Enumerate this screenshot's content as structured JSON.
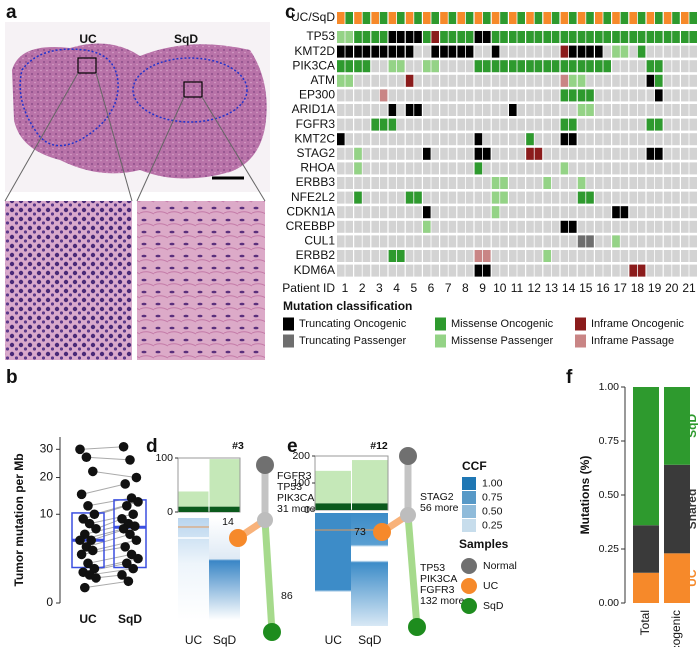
{
  "panel_a": {
    "letter": "a",
    "labels": [
      "UC",
      "SqD"
    ]
  },
  "chart_data": [
    {
      "type": "oncoprint",
      "panel": "c",
      "sample_row": "UC/SqD",
      "sample_colors": [
        "#f6892a",
        "#2e9a2e"
      ],
      "empty_color": "#d3d3d3",
      "genes": [
        "TP53",
        "KMT2D",
        "PIK3CA",
        "ATM",
        "EP300",
        "ARID1A",
        "FGFR3",
        "KMT2C",
        "STAG2",
        "RHOA",
        "ERBB3",
        "NFE2L2",
        "CDKN1A",
        "CREBBP",
        "CUL1",
        "ERBB2",
        "KDM6A"
      ],
      "matrix": [
        [
          3,
          3,
          2,
          2,
          2,
          2,
          0,
          0,
          0,
          0,
          2,
          4,
          2,
          2,
          2,
          2,
          0,
          0,
          2,
          2,
          2,
          2,
          2,
          2,
          2,
          2,
          2,
          2,
          2,
          2,
          2,
          2,
          2,
          2,
          2,
          2,
          2,
          2,
          2,
          2,
          2,
          2
        ],
        [
          0,
          0,
          0,
          0,
          0,
          0,
          0,
          0,
          0,
          null,
          null,
          0,
          0,
          0,
          0,
          0,
          null,
          null,
          0,
          null,
          null,
          null,
          null,
          null,
          null,
          null,
          4,
          0,
          0,
          0,
          0,
          null,
          3,
          3,
          null,
          2,
          null,
          null,
          null,
          null,
          null,
          null
        ],
        [
          2,
          2,
          2,
          2,
          null,
          null,
          3,
          3,
          null,
          null,
          3,
          3,
          null,
          null,
          null,
          null,
          2,
          2,
          2,
          2,
          2,
          2,
          2,
          2,
          2,
          2,
          2,
          2,
          2,
          2,
          2,
          2,
          null,
          null,
          null,
          null,
          2,
          2,
          null,
          null,
          null,
          null
        ],
        [
          3,
          3,
          null,
          null,
          null,
          null,
          null,
          null,
          4,
          null,
          null,
          null,
          null,
          null,
          null,
          null,
          null,
          null,
          null,
          null,
          null,
          null,
          null,
          null,
          null,
          null,
          5,
          3,
          3,
          null,
          null,
          null,
          null,
          null,
          null,
          null,
          0,
          2,
          null,
          null,
          null,
          null
        ],
        [
          null,
          null,
          null,
          null,
          null,
          5,
          null,
          null,
          null,
          null,
          null,
          null,
          null,
          null,
          null,
          null,
          null,
          null,
          null,
          null,
          null,
          null,
          null,
          null,
          null,
          null,
          2,
          2,
          2,
          2,
          null,
          null,
          null,
          null,
          null,
          null,
          null,
          0,
          null,
          null,
          null,
          null
        ],
        [
          null,
          null,
          null,
          null,
          null,
          null,
          0,
          null,
          0,
          0,
          null,
          null,
          null,
          null,
          null,
          null,
          null,
          null,
          null,
          null,
          0,
          null,
          null,
          null,
          null,
          null,
          null,
          null,
          3,
          3,
          null,
          null,
          null,
          null,
          null,
          null,
          null,
          null,
          null,
          null,
          null,
          null
        ],
        [
          null,
          null,
          null,
          null,
          2,
          2,
          2,
          null,
          null,
          null,
          null,
          null,
          null,
          null,
          null,
          null,
          null,
          null,
          null,
          null,
          null,
          null,
          null,
          null,
          null,
          null,
          2,
          2,
          null,
          null,
          null,
          null,
          null,
          null,
          null,
          null,
          2,
          2,
          null,
          null,
          null,
          null
        ],
        [
          0,
          null,
          null,
          null,
          null,
          null,
          null,
          null,
          null,
          null,
          null,
          null,
          null,
          null,
          null,
          null,
          0,
          null,
          null,
          null,
          null,
          null,
          2,
          null,
          null,
          null,
          0,
          0,
          null,
          null,
          null,
          null,
          null,
          null,
          null,
          null,
          null,
          null,
          null,
          null,
          null,
          null
        ],
        [
          null,
          null,
          3,
          null,
          null,
          null,
          null,
          null,
          null,
          null,
          0,
          null,
          null,
          null,
          null,
          null,
          0,
          0,
          null,
          null,
          null,
          null,
          4,
          4,
          null,
          null,
          null,
          null,
          null,
          null,
          null,
          null,
          null,
          null,
          null,
          null,
          0,
          0,
          null,
          null,
          null,
          null
        ],
        [
          null,
          null,
          3,
          null,
          null,
          null,
          null,
          null,
          null,
          null,
          null,
          null,
          null,
          null,
          null,
          null,
          2,
          null,
          null,
          null,
          null,
          null,
          null,
          null,
          null,
          null,
          3,
          null,
          null,
          null,
          null,
          null,
          null,
          null,
          null,
          null,
          null,
          null,
          null,
          null,
          null,
          null
        ],
        [
          null,
          null,
          null,
          null,
          null,
          null,
          null,
          null,
          null,
          null,
          null,
          null,
          null,
          null,
          null,
          null,
          null,
          null,
          3,
          3,
          null,
          null,
          null,
          null,
          3,
          null,
          null,
          null,
          3,
          null,
          null,
          null,
          null,
          null,
          null,
          null,
          null,
          null,
          null,
          null,
          null,
          null
        ],
        [
          null,
          null,
          2,
          null,
          null,
          null,
          null,
          null,
          2,
          2,
          null,
          null,
          null,
          null,
          null,
          null,
          null,
          null,
          3,
          3,
          null,
          null,
          null,
          null,
          null,
          null,
          null,
          null,
          2,
          2,
          null,
          null,
          null,
          null,
          null,
          null,
          null,
          null,
          null,
          null,
          null,
          null
        ],
        [
          null,
          null,
          null,
          null,
          null,
          null,
          null,
          null,
          null,
          null,
          0,
          null,
          null,
          null,
          null,
          null,
          null,
          null,
          3,
          null,
          null,
          null,
          null,
          null,
          null,
          null,
          null,
          null,
          null,
          null,
          null,
          null,
          0,
          0,
          null,
          null,
          null,
          null,
          null,
          null,
          null,
          null
        ],
        [
          null,
          null,
          null,
          null,
          null,
          null,
          null,
          null,
          null,
          null,
          3,
          null,
          null,
          null,
          null,
          null,
          null,
          null,
          null,
          null,
          null,
          null,
          null,
          null,
          null,
          null,
          0,
          0,
          null,
          null,
          null,
          null,
          null,
          null,
          null,
          null,
          null,
          null,
          null,
          null,
          null,
          null
        ],
        [
          null,
          null,
          null,
          null,
          null,
          null,
          null,
          null,
          null,
          null,
          null,
          null,
          null,
          null,
          null,
          null,
          null,
          null,
          null,
          null,
          null,
          null,
          null,
          null,
          null,
          null,
          null,
          null,
          1,
          1,
          null,
          null,
          3,
          null,
          null,
          null,
          null,
          null,
          null,
          null,
          null,
          null
        ],
        [
          null,
          null,
          null,
          null,
          null,
          null,
          2,
          2,
          null,
          null,
          null,
          null,
          null,
          null,
          null,
          null,
          5,
          5,
          null,
          null,
          null,
          null,
          null,
          null,
          3,
          null,
          null,
          null,
          null,
          null,
          null,
          null,
          null,
          null,
          null,
          null,
          null,
          null,
          null,
          null,
          null,
          null
        ],
        [
          null,
          null,
          null,
          null,
          null,
          null,
          null,
          null,
          null,
          null,
          null,
          null,
          null,
          null,
          null,
          null,
          0,
          0,
          null,
          null,
          null,
          null,
          null,
          null,
          null,
          null,
          null,
          null,
          null,
          null,
          null,
          null,
          null,
          null,
          4,
          4,
          null,
          null,
          null,
          null,
          null,
          null
        ]
      ],
      "x_label": "Patient ID",
      "patients": [
        1,
        2,
        3,
        4,
        5,
        6,
        7,
        8,
        9,
        10,
        11,
        12,
        13,
        14,
        15,
        16,
        17,
        18,
        19,
        20,
        21
      ],
      "legend_title": "Mutation classification",
      "classes": [
        {
          "name": "Truncating Oncogenic",
          "color": "#000000"
        },
        {
          "name": "Truncating Passenger",
          "color": "#6e6e6e"
        },
        {
          "name": "Missense Oncogenic",
          "color": "#2e9a2e"
        },
        {
          "name": "Missense Passenger",
          "color": "#94d386"
        },
        {
          "name": "Inframe Oncogenic",
          "color": "#8b1c1c"
        },
        {
          "name": "Inframe Passage",
          "color": "#c98585"
        }
      ]
    },
    {
      "type": "strip-box",
      "panel": "b",
      "y_label": "Tumor mutation per Mb",
      "categories": [
        "UC",
        "SqD"
      ],
      "values": [
        [
          30,
          27,
          22,
          15,
          12,
          10,
          9,
          8,
          7,
          6,
          5,
          5,
          4,
          3.5,
          3,
          2,
          1.5,
          1.2,
          1,
          0.8,
          0.3
        ],
        [
          31,
          26,
          20,
          18,
          14,
          13,
          12,
          10,
          9,
          8,
          7.5,
          7,
          6,
          5,
          4,
          3,
          2.5,
          2,
          1.5,
          1,
          0.6
        ]
      ],
      "boxes": [
        {
          "q1": 1.6,
          "median": 5,
          "q3": 10.3
        },
        {
          "q1": 1.6,
          "median": 7.3,
          "q3": 13.5
        }
      ],
      "box_color": "#3b4fe0",
      "point_color": "#111111",
      "line_color": "#aaaaaa",
      "yscale": "sqrt",
      "ylim": [
        0,
        35
      ],
      "yticks": [
        0,
        10,
        20,
        30
      ]
    },
    {
      "type": "clone",
      "panel": "d",
      "title": "#3",
      "categories": [
        "UC",
        "SqD"
      ],
      "series": [
        {
          "color": "#0b5a1c",
          "values": [
            10,
            10
          ]
        },
        {
          "color": "#c5e8b8",
          "values": [
            28,
            88
          ]
        }
      ],
      "ylim": [
        0,
        100
      ],
      "yticks": [
        0,
        100
      ],
      "trunk_labels": [
        "FGFR3",
        "TP53",
        "PIK3CA",
        "31 more"
      ],
      "uc_labels": [
        "14"
      ],
      "sqd_labels": [
        "86"
      ]
    },
    {
      "type": "clone",
      "panel": "e",
      "title": "#12",
      "categories": [
        "UC",
        "SqD"
      ],
      "series": [
        {
          "color": "#0b5a1c",
          "values": [
            25,
            25
          ]
        },
        {
          "color": "#c5e8b8",
          "values": [
            120,
            160
          ]
        }
      ],
      "ylim": [
        0,
        200
      ],
      "yticks": [
        0,
        100,
        200
      ],
      "trunk_labels": [
        "STAG2",
        "56 more"
      ],
      "uc_labels": [
        "73"
      ],
      "sqd_labels": [
        "TP53",
        "PIK3CA",
        "FGFR3",
        "132 more"
      ]
    },
    {
      "type": "stacked-bar",
      "panel": "f",
      "y_label": "Mutations (%)",
      "categories": [
        "Total",
        "Oncogenic"
      ],
      "series": [
        {
          "name": "UC",
          "color": "#f6892a",
          "values": [
            0.14,
            0.23
          ]
        },
        {
          "name": "Shared",
          "color": "#3a3a3a",
          "values": [
            0.22,
            0.41
          ]
        },
        {
          "name": "SqD",
          "color": "#2e9a2e",
          "values": [
            0.64,
            0.36
          ]
        }
      ],
      "ylim": [
        0,
        1
      ],
      "yticks": [
        {
          "value": 0,
          "label": "0.00"
        },
        {
          "value": 0.25,
          "label": "0.25"
        },
        {
          "value": 0.5,
          "label": "0.50"
        },
        {
          "value": 0.75,
          "label": "0.75"
        },
        {
          "value": 1,
          "label": "1.00"
        }
      ]
    }
  ],
  "legends": {
    "ccf": {
      "title": "CCF",
      "ticks": [
        {
          "value": 1,
          "label": "1.00"
        },
        {
          "value": 0.75,
          "label": "0.75"
        },
        {
          "value": 0.5,
          "label": "0.50"
        },
        {
          "value": 0.25,
          "label": "0.25"
        }
      ]
    },
    "samples": {
      "title": "Samples",
      "items": [
        {
          "name": "Normal",
          "color": "#707070"
        },
        {
          "name": "UC",
          "color": "#f6892a"
        },
        {
          "name": "SqD",
          "color": "#1e8c1e"
        }
      ]
    }
  }
}
